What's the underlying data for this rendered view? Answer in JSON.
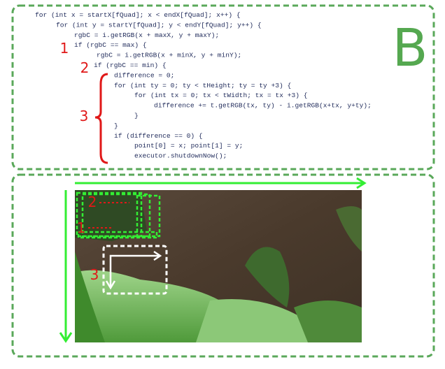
{
  "code": {
    "lines": [
      "for (int x = startX[fQuad]; x < endX[fQuad]; x++) {",
      "for (int y = startY[fQuad]; y < endY[fQuad]; y++) {",
      "rgbC = i.getRGB(x + maxX, y + maxY);",
      "if (rgbC == max) {",
      "rgbC = i.getRGB(x + minX, y + minY);",
      "if (rgbC == min) {",
      "difference = 0;",
      "for (int ty = 0; ty < tHeight; ty = ty +3) {",
      "for (int tx = 0; tx < tWidth; tx = tx +3) {",
      "difference += t.getRGB(tx, ty) - i.getRGB(x+tx, y+ty);",
      "}",
      "}",
      "if (difference == 0) {",
      "point[0] = x; point[1] = y;",
      "executor.shutdownNow();"
    ]
  },
  "panel_label": "B",
  "code_markers": [
    "1",
    "2",
    "3"
  ],
  "image_markers": [
    "2",
    "1",
    "3"
  ]
}
